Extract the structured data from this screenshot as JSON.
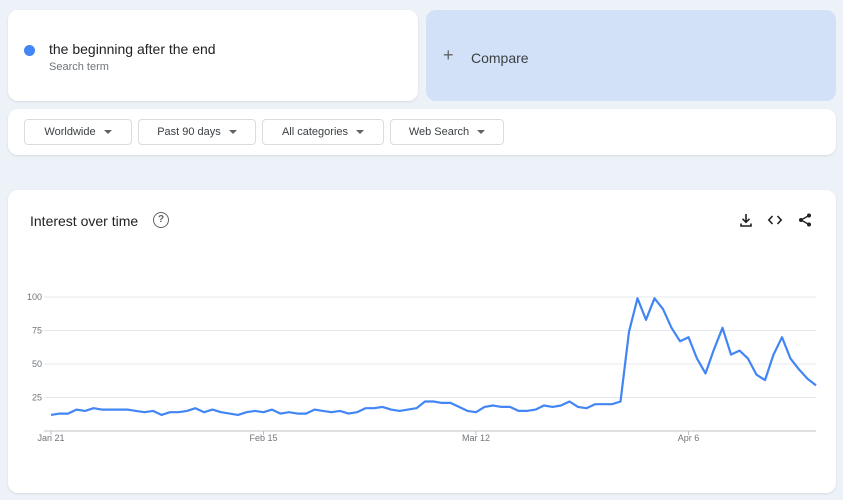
{
  "search_term": {
    "label": "the beginning after the end",
    "sublabel": "Search term",
    "color": "#4285f4"
  },
  "compare": {
    "label": "Compare",
    "icon": "plus-icon"
  },
  "filters": [
    {
      "label": "Worldwide"
    },
    {
      "label": "Past 90 days"
    },
    {
      "label": "All categories"
    },
    {
      "label": "Web Search"
    }
  ],
  "panel": {
    "title": "Interest over time",
    "icons": [
      "help-icon",
      "download-icon",
      "embed-icon",
      "share-icon"
    ]
  },
  "chart_data": {
    "type": "line",
    "title": "",
    "xlabel": "",
    "ylabel": "",
    "ylim": [
      0,
      100
    ],
    "yticks": [
      25,
      50,
      75,
      100
    ],
    "xtick_labels": [
      "Jan 21",
      "Feb 15",
      "Mar 12",
      "Apr 6"
    ],
    "grid": true,
    "series": [
      {
        "color": "#4285f4",
        "values": [
          12,
          13,
          13,
          16,
          15,
          17,
          16,
          16,
          16,
          16,
          15,
          14,
          15,
          12,
          14,
          14,
          15,
          17,
          14,
          16,
          14,
          13,
          12,
          14,
          15,
          14,
          16,
          13,
          14,
          13,
          13,
          16,
          15,
          14,
          15,
          13,
          14,
          17,
          17,
          18,
          16,
          15,
          16,
          17,
          22,
          22,
          21,
          21,
          18,
          15,
          14,
          18,
          19,
          18,
          18,
          15,
          15,
          16,
          19,
          18,
          19,
          22,
          18,
          17,
          20,
          20,
          20,
          22,
          74,
          99,
          83,
          99,
          91,
          77,
          67,
          70,
          54,
          43,
          61,
          77,
          57,
          60,
          54,
          42,
          38,
          57,
          70,
          54,
          46,
          39,
          34
        ]
      }
    ]
  }
}
